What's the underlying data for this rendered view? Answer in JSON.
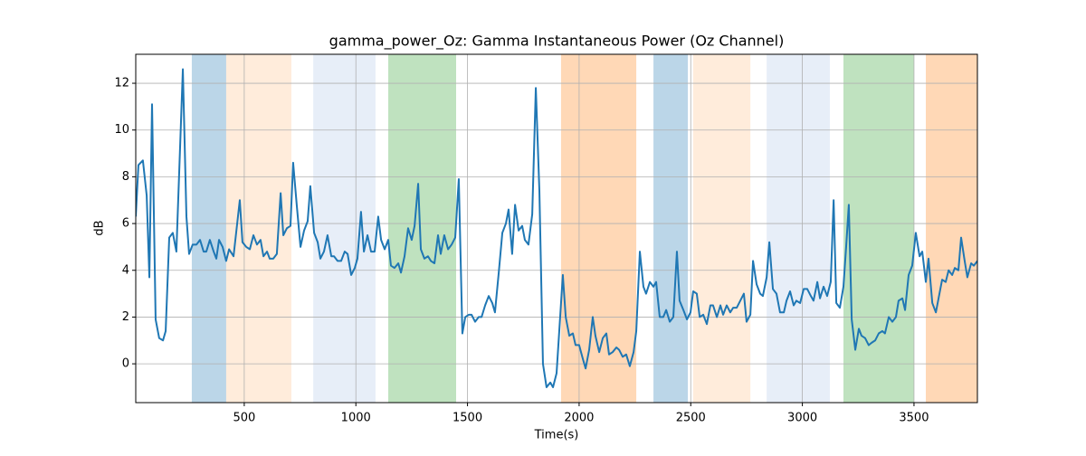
{
  "chart_data": {
    "type": "line",
    "title": "gamma_power_Oz: Gamma Instantaneous Power (Oz Channel)",
    "xlabel": "Time(s)",
    "ylabel": "dB",
    "xlim": [
      14,
      3784
    ],
    "ylim": [
      -1.66,
      13.24
    ],
    "xticks": [
      500,
      1000,
      1500,
      2000,
      2500,
      3000,
      3500
    ],
    "yticks": [
      0,
      2,
      4,
      6,
      8,
      10,
      12
    ],
    "grid": true,
    "spans": [
      {
        "x0": 265,
        "x1": 419,
        "color": "#1f77b4",
        "alpha": 0.3
      },
      {
        "x0": 419,
        "x1": 711,
        "color": "#ff7f0e",
        "alpha": 0.15
      },
      {
        "x0": 809,
        "x1": 1088,
        "color": "#aec7e8",
        "alpha": 0.3
      },
      {
        "x0": 1145,
        "x1": 1449,
        "color": "#2ca02c",
        "alpha": 0.3
      },
      {
        "x0": 1919,
        "x1": 2256,
        "color": "#ff7f0e",
        "alpha": 0.3
      },
      {
        "x0": 2333,
        "x1": 2487,
        "color": "#1f77b4",
        "alpha": 0.3
      },
      {
        "x0": 2511,
        "x1": 2767,
        "color": "#ff7f0e",
        "alpha": 0.15
      },
      {
        "x0": 2840,
        "x1": 3123,
        "color": "#aec7e8",
        "alpha": 0.3
      },
      {
        "x0": 3184,
        "x1": 3500,
        "color": "#2ca02c",
        "alpha": 0.3
      },
      {
        "x0": 3553,
        "x1": 3784,
        "color": "#ff7f0e",
        "alpha": 0.3
      }
    ],
    "x": [
      14,
      26,
      46,
      63,
      75,
      87,
      103,
      119,
      136,
      148,
      164,
      180,
      196,
      225,
      241,
      253,
      269,
      286,
      302,
      318,
      330,
      346,
      363,
      375,
      387,
      403,
      419,
      432,
      452,
      480,
      492,
      509,
      525,
      541,
      557,
      573,
      586,
      602,
      614,
      630,
      646,
      663,
      675,
      691,
      707,
      719,
      736,
      752,
      768,
      784,
      796,
      813,
      829,
      841,
      857,
      873,
      890,
      902,
      918,
      934,
      950,
      963,
      979,
      995,
      1007,
      1023,
      1036,
      1052,
      1068,
      1084,
      1100,
      1113,
      1129,
      1145,
      1157,
      1173,
      1190,
      1202,
      1218,
      1234,
      1250,
      1263,
      1279,
      1291,
      1307,
      1323,
      1336,
      1352,
      1368,
      1380,
      1396,
      1413,
      1429,
      1445,
      1461,
      1477,
      1490,
      1506,
      1518,
      1534,
      1550,
      1563,
      1579,
      1595,
      1611,
      1623,
      1640,
      1656,
      1672,
      1684,
      1700,
      1713,
      1729,
      1745,
      1757,
      1773,
      1790,
      1806,
      1822,
      1838,
      1854,
      1871,
      1883,
      1899,
      1927,
      1940,
      1956,
      1972,
      1984,
      2000,
      2017,
      2029,
      2045,
      2061,
      2073,
      2090,
      2106,
      2122,
      2134,
      2150,
      2167,
      2179,
      2195,
      2211,
      2227,
      2244,
      2256,
      2272,
      2288,
      2300,
      2317,
      2333,
      2345,
      2361,
      2377,
      2390,
      2406,
      2422,
      2438,
      2450,
      2467,
      2483,
      2499,
      2511,
      2527,
      2540,
      2556,
      2572,
      2588,
      2600,
      2617,
      2633,
      2645,
      2661,
      2677,
      2690,
      2706,
      2722,
      2738,
      2750,
      2767,
      2779,
      2795,
      2811,
      2823,
      2840,
      2852,
      2868,
      2884,
      2900,
      2917,
      2929,
      2945,
      2961,
      2973,
      2990,
      3006,
      3022,
      3038,
      3050,
      3067,
      3079,
      3095,
      3111,
      3127,
      3140,
      3152,
      3168,
      3184,
      3196,
      3208,
      3221,
      3237,
      3253,
      3265,
      3281,
      3297,
      3310,
      3326,
      3342,
      3358,
      3370,
      3387,
      3403,
      3419,
      3431,
      3448,
      3460,
      3476,
      3492,
      3508,
      3525,
      3537,
      3553,
      3565,
      3582,
      3598,
      3610,
      3626,
      3642,
      3655,
      3671,
      3683,
      3699,
      3711,
      3727,
      3739,
      3756,
      3768,
      3784
    ],
    "series": [
      {
        "color": "#1f77b4",
        "values": [
          6.3,
          8.5,
          8.7,
          7.2,
          3.7,
          11.1,
          1.9,
          1.1,
          1.0,
          1.4,
          5.4,
          5.6,
          4.8,
          12.6,
          6.3,
          4.7,
          5.1,
          5.1,
          5.3,
          4.8,
          4.8,
          5.3,
          4.8,
          4.5,
          5.3,
          5.0,
          4.4,
          4.9,
          4.6,
          7.0,
          5.2,
          5.0,
          4.9,
          5.5,
          5.1,
          5.3,
          4.6,
          4.8,
          4.5,
          4.5,
          4.7,
          7.3,
          5.5,
          5.8,
          5.9,
          8.6,
          6.7,
          5.0,
          5.7,
          6.1,
          7.6,
          5.6,
          5.2,
          4.5,
          4.8,
          5.5,
          4.6,
          4.6,
          4.4,
          4.4,
          4.8,
          4.7,
          3.8,
          4.1,
          4.5,
          6.5,
          4.8,
          5.5,
          4.8,
          4.8,
          6.3,
          5.3,
          4.9,
          5.3,
          4.2,
          4.1,
          4.3,
          3.9,
          4.6,
          5.8,
          5.3,
          5.9,
          7.7,
          4.9,
          4.5,
          4.6,
          4.4,
          4.3,
          5.5,
          4.7,
          5.5,
          4.9,
          5.1,
          5.4,
          7.9,
          1.3,
          2.0,
          2.1,
          2.1,
          1.8,
          2.0,
          2.0,
          2.5,
          2.9,
          2.6,
          2.2,
          3.9,
          5.6,
          6.0,
          6.6,
          4.7,
          6.8,
          5.7,
          5.9,
          5.3,
          5.1,
          6.4,
          11.8,
          7.4,
          0.0,
          -1.0,
          -0.8,
          -1.0,
          -0.4,
          3.8,
          2.0,
          1.2,
          1.3,
          0.8,
          0.8,
          0.2,
          -0.2,
          0.6,
          2.0,
          1.2,
          0.5,
          1.1,
          1.3,
          0.4,
          0.5,
          0.7,
          0.6,
          0.3,
          0.4,
          -0.1,
          0.5,
          1.4,
          4.8,
          3.3,
          3.0,
          3.5,
          3.3,
          3.5,
          2.0,
          2.0,
          2.3,
          1.8,
          2.0,
          4.8,
          2.7,
          2.3,
          1.9,
          2.2,
          3.1,
          3.0,
          2.0,
          2.1,
          1.7,
          2.5,
          2.5,
          2.0,
          2.5,
          2.1,
          2.5,
          2.2,
          2.4,
          2.4,
          2.7,
          3.0,
          1.8,
          2.1,
          4.4,
          3.4,
          3.0,
          2.9,
          3.7,
          5.2,
          3.2,
          3.0,
          2.2,
          2.2,
          2.7,
          3.1,
          2.5,
          2.7,
          2.6,
          3.2,
          3.2,
          2.9,
          2.7,
          3.5,
          2.8,
          3.3,
          2.9,
          3.5,
          7.0,
          2.6,
          2.4,
          3.3,
          5.0,
          6.8,
          1.9,
          0.6,
          1.5,
          1.2,
          1.1,
          0.8,
          0.9,
          1.0,
          1.3,
          1.4,
          1.3,
          2.0,
          1.8,
          2.0,
          2.7,
          2.8,
          2.3,
          3.8,
          4.2,
          5.6,
          4.6,
          4.8,
          3.5,
          4.5,
          2.6,
          2.2,
          2.8,
          3.6,
          3.5,
          4.0,
          3.8,
          4.1,
          4.0,
          5.4,
          4.4,
          3.7,
          4.3,
          4.2,
          4.4
        ]
      }
    ]
  }
}
